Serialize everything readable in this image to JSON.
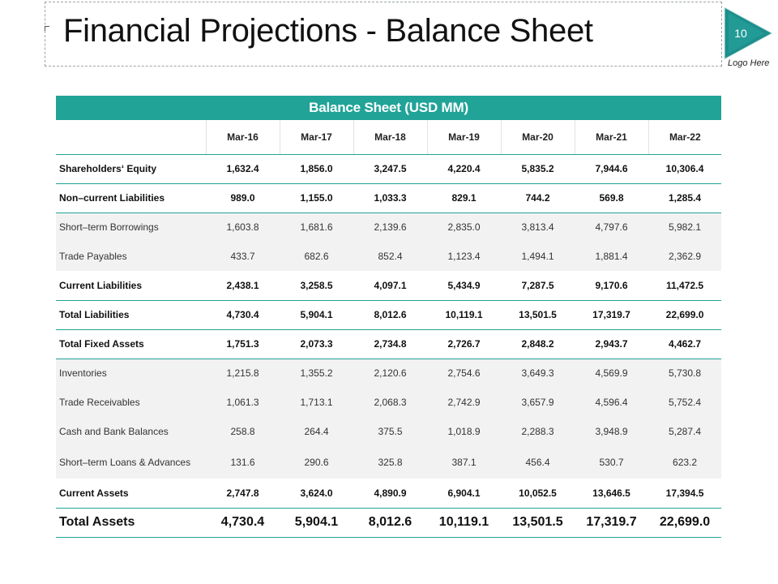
{
  "slide": {
    "title": "Financial Projections - Balance Sheet",
    "page_number": "10",
    "logo_text": "Logo Here",
    "accent_color": "#21a398",
    "badge_color": "#1e8f8c"
  },
  "table": {
    "banner": "Balance Sheet (USD MM)",
    "columns": [
      "",
      "Mar-16",
      "Mar-17",
      "Mar-18",
      "Mar-19",
      "Mar-20",
      "Mar-21",
      "Mar-22"
    ],
    "rows": [
      {
        "label": "Shareholders‘ Equity",
        "values": [
          "1,632.4",
          "1,856.0",
          "3,247.5",
          "4,220.4",
          "5,835.2",
          "7,944.6",
          "10,306.4"
        ]
      },
      {
        "label": "Non–current Liabilities",
        "values": [
          "989.0",
          "1,155.0",
          "1,033.3",
          "829.1",
          "744.2",
          "569.8",
          "1,285.4"
        ]
      },
      {
        "label": "Short–term Borrowings",
        "values": [
          "1,603.8",
          "1,681.6",
          "2,139.6",
          "2,835.0",
          "3,813.4",
          "4,797.6",
          "5,982.1"
        ]
      },
      {
        "label": "Trade Payables",
        "values": [
          "433.7",
          "682.6",
          "852.4",
          "1,123.4",
          "1,494.1",
          "1,881.4",
          "2,362.9"
        ]
      },
      {
        "label": "Current Liabilities",
        "values": [
          "2,438.1",
          "3,258.5",
          "4,097.1",
          "5,434.9",
          "7,287.5",
          "9,170.6",
          "11,472.5"
        ]
      },
      {
        "label": "Total Liabilities",
        "values": [
          "4,730.4",
          "5,904.1",
          "8,012.6",
          "10,119.1",
          "13,501.5",
          "17,319.7",
          "22,699.0"
        ]
      },
      {
        "label": "Total Fixed Assets",
        "values": [
          "1,751.3",
          "2,073.3",
          "2,734.8",
          "2,726.7",
          "2,848.2",
          "2,943.7",
          "4,462.7"
        ]
      },
      {
        "label": "Inventories",
        "values": [
          "1,215.8",
          "1,355.2",
          "2,120.6",
          "2,754.6",
          "3,649.3",
          "4,569.9",
          "5,730.8"
        ]
      },
      {
        "label": "Trade Receivables",
        "values": [
          "1,061.3",
          "1,713.1",
          "2,068.3",
          "2,742.9",
          "3,657.9",
          "4,596.4",
          "5,752.4"
        ]
      },
      {
        "label": "Cash and Bank Balances",
        "values": [
          "258.8",
          "264.4",
          "375.5",
          "1,018.9",
          "2,288.3",
          "3,948.9",
          "5,287.4"
        ]
      },
      {
        "label": "Short–term Loans & Advances",
        "values": [
          "131.6",
          "290.6",
          "325.8",
          "387.1",
          "456.4",
          "530.7",
          "623.2"
        ]
      },
      {
        "label": "Current Assets",
        "values": [
          "2,747.8",
          "3,624.0",
          "4,890.9",
          "6,904.1",
          "10,052.5",
          "13,646.5",
          "17,394.5"
        ]
      },
      {
        "label": "Total Assets",
        "values": [
          "4,730.4",
          "5,904.1",
          "8,012.6",
          "10,119.1",
          "13,501.5",
          "17,319.7",
          "22,699.0"
        ]
      }
    ]
  }
}
